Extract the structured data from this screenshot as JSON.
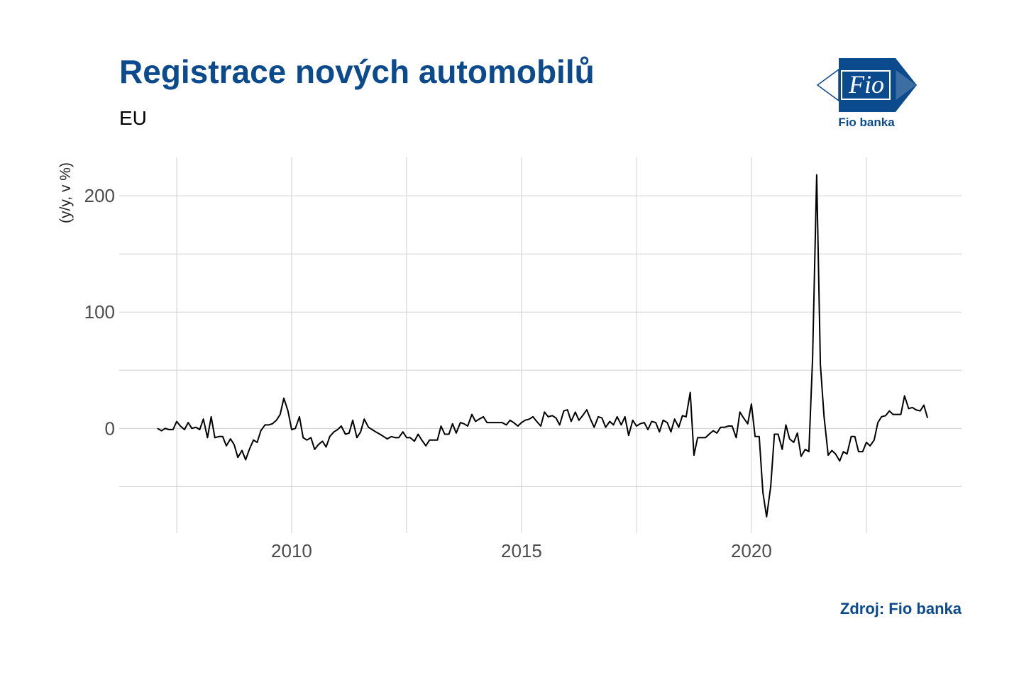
{
  "chart_data": {
    "type": "line",
    "title": "Registrace nových automobilů",
    "subtitle": "EU",
    "y_label": "(y/y, v %)",
    "source": "Zdroj: Fio banka",
    "logo": {
      "mark": "Fio",
      "name": "Fio banka"
    },
    "color": "#000000",
    "grid": true,
    "xlim": [
      2006.25,
      2024.57
    ],
    "ylim": [
      -90,
      233
    ],
    "xticks": [
      2010,
      2015,
      2020
    ],
    "yticks": [
      0,
      100,
      200
    ],
    "xminor": [
      2007.5,
      2012.5,
      2017.5,
      2022.5
    ],
    "yminor": [
      -50,
      50,
      150
    ],
    "x": [
      2007.08,
      2007.17,
      2007.25,
      2007.33,
      2007.42,
      2007.5,
      2007.58,
      2007.67,
      2007.75,
      2007.83,
      2007.92,
      2008,
      2008.08,
      2008.17,
      2008.25,
      2008.33,
      2008.42,
      2008.5,
      2008.58,
      2008.67,
      2008.75,
      2008.83,
      2008.92,
      2009,
      2009.08,
      2009.17,
      2009.25,
      2009.33,
      2009.42,
      2009.5,
      2009.58,
      2009.67,
      2009.75,
      2009.83,
      2009.92,
      2010,
      2010.08,
      2010.17,
      2010.25,
      2010.33,
      2010.42,
      2010.5,
      2010.58,
      2010.67,
      2010.75,
      2010.83,
      2010.92,
      2011,
      2011.08,
      2011.17,
      2011.25,
      2011.33,
      2011.42,
      2011.5,
      2011.58,
      2011.67,
      2011.75,
      2011.83,
      2011.92,
      2012,
      2012.08,
      2012.17,
      2012.25,
      2012.33,
      2012.42,
      2012.5,
      2012.58,
      2012.67,
      2012.75,
      2012.83,
      2012.92,
      2013,
      2013.08,
      2013.17,
      2013.25,
      2013.33,
      2013.42,
      2013.5,
      2013.58,
      2013.67,
      2013.75,
      2013.83,
      2013.92,
      2014,
      2014.08,
      2014.17,
      2014.25,
      2014.33,
      2014.42,
      2014.5,
      2014.58,
      2014.67,
      2014.75,
      2014.83,
      2014.92,
      2015,
      2015.08,
      2015.17,
      2015.25,
      2015.33,
      2015.42,
      2015.5,
      2015.58,
      2015.67,
      2015.75,
      2015.83,
      2015.92,
      2016,
      2016.08,
      2016.17,
      2016.25,
      2016.33,
      2016.42,
      2016.5,
      2016.58,
      2016.67,
      2016.75,
      2016.83,
      2016.92,
      2017,
      2017.08,
      2017.17,
      2017.25,
      2017.33,
      2017.42,
      2017.5,
      2017.58,
      2017.67,
      2017.75,
      2017.83,
      2017.92,
      2018,
      2018.08,
      2018.17,
      2018.25,
      2018.33,
      2018.42,
      2018.5,
      2018.58,
      2018.67,
      2018.75,
      2018.83,
      2018.92,
      2019,
      2019.08,
      2019.17,
      2019.25,
      2019.33,
      2019.42,
      2019.5,
      2019.58,
      2019.67,
      2019.75,
      2019.83,
      2019.92,
      2020,
      2020.08,
      2020.17,
      2020.25,
      2020.33,
      2020.42,
      2020.5,
      2020.58,
      2020.67,
      2020.75,
      2020.83,
      2020.92,
      2021,
      2021.08,
      2021.17,
      2021.25,
      2021.33,
      2021.42,
      2021.5,
      2021.58,
      2021.67,
      2021.75,
      2021.83,
      2021.92,
      2022,
      2022.08,
      2022.17,
      2022.25,
      2022.33,
      2022.42,
      2022.5,
      2022.58,
      2022.67,
      2022.75,
      2022.83,
      2022.92,
      2023,
      2023.08,
      2023.17,
      2023.25,
      2023.33,
      2023.42,
      2023.5,
      2023.58,
      2023.67,
      2023.75,
      2023.83
    ],
    "values": [
      0,
      -2,
      0,
      -1,
      -1,
      6,
      2,
      -1,
      5,
      0,
      1,
      -1,
      8,
      -8,
      10,
      -8,
      -7,
      -7,
      -15,
      -9,
      -14,
      -25,
      -19,
      -27,
      -18,
      -10,
      -12,
      -2,
      3,
      3,
      4,
      7,
      12,
      26,
      15,
      -1,
      0,
      10,
      -8,
      -10,
      -8,
      -18,
      -14,
      -11,
      -16,
      -7,
      -3,
      -1,
      2,
      -5,
      -4,
      7,
      -8,
      -3,
      8,
      1,
      -1,
      -3,
      -5,
      -7,
      -9,
      -7,
      -8,
      -8,
      -3,
      -8,
      -8,
      -11,
      -5,
      -10,
      -15,
      -10,
      -10,
      -10,
      2,
      -5,
      -5,
      4,
      -4,
      5,
      4,
      2,
      12,
      6,
      8,
      10,
      5,
      5,
      5,
      5,
      5,
      3,
      7,
      5,
      2,
      5,
      7,
      8,
      10,
      6,
      2,
      14,
      10,
      11,
      9,
      3,
      15,
      16,
      6,
      14,
      7,
      11,
      16,
      8,
      1,
      10,
      9,
      1,
      6,
      3,
      10,
      3,
      10,
      -6,
      7,
      2,
      4,
      5,
      -1,
      6,
      5,
      -3,
      7,
      5,
      -3,
      8,
      1,
      11,
      10,
      31,
      -23,
      -8,
      -8,
      -8,
      -5,
      -2,
      -4,
      1,
      1,
      2,
      2,
      -8,
      14,
      9,
      4,
      21,
      -7,
      -7,
      -55,
      -76,
      -50,
      -5,
      -5,
      -18,
      3,
      -9,
      -12,
      -4,
      -24,
      -18,
      -20,
      60,
      218,
      55,
      10,
      -23,
      -19,
      -22,
      -28,
      -20,
      -22,
      -7,
      -7,
      -20,
      -20,
      -12,
      -15,
      -10,
      5,
      10,
      11,
      15,
      12,
      12,
      12,
      28,
      17,
      18,
      16,
      15,
      20,
      9
    ]
  }
}
